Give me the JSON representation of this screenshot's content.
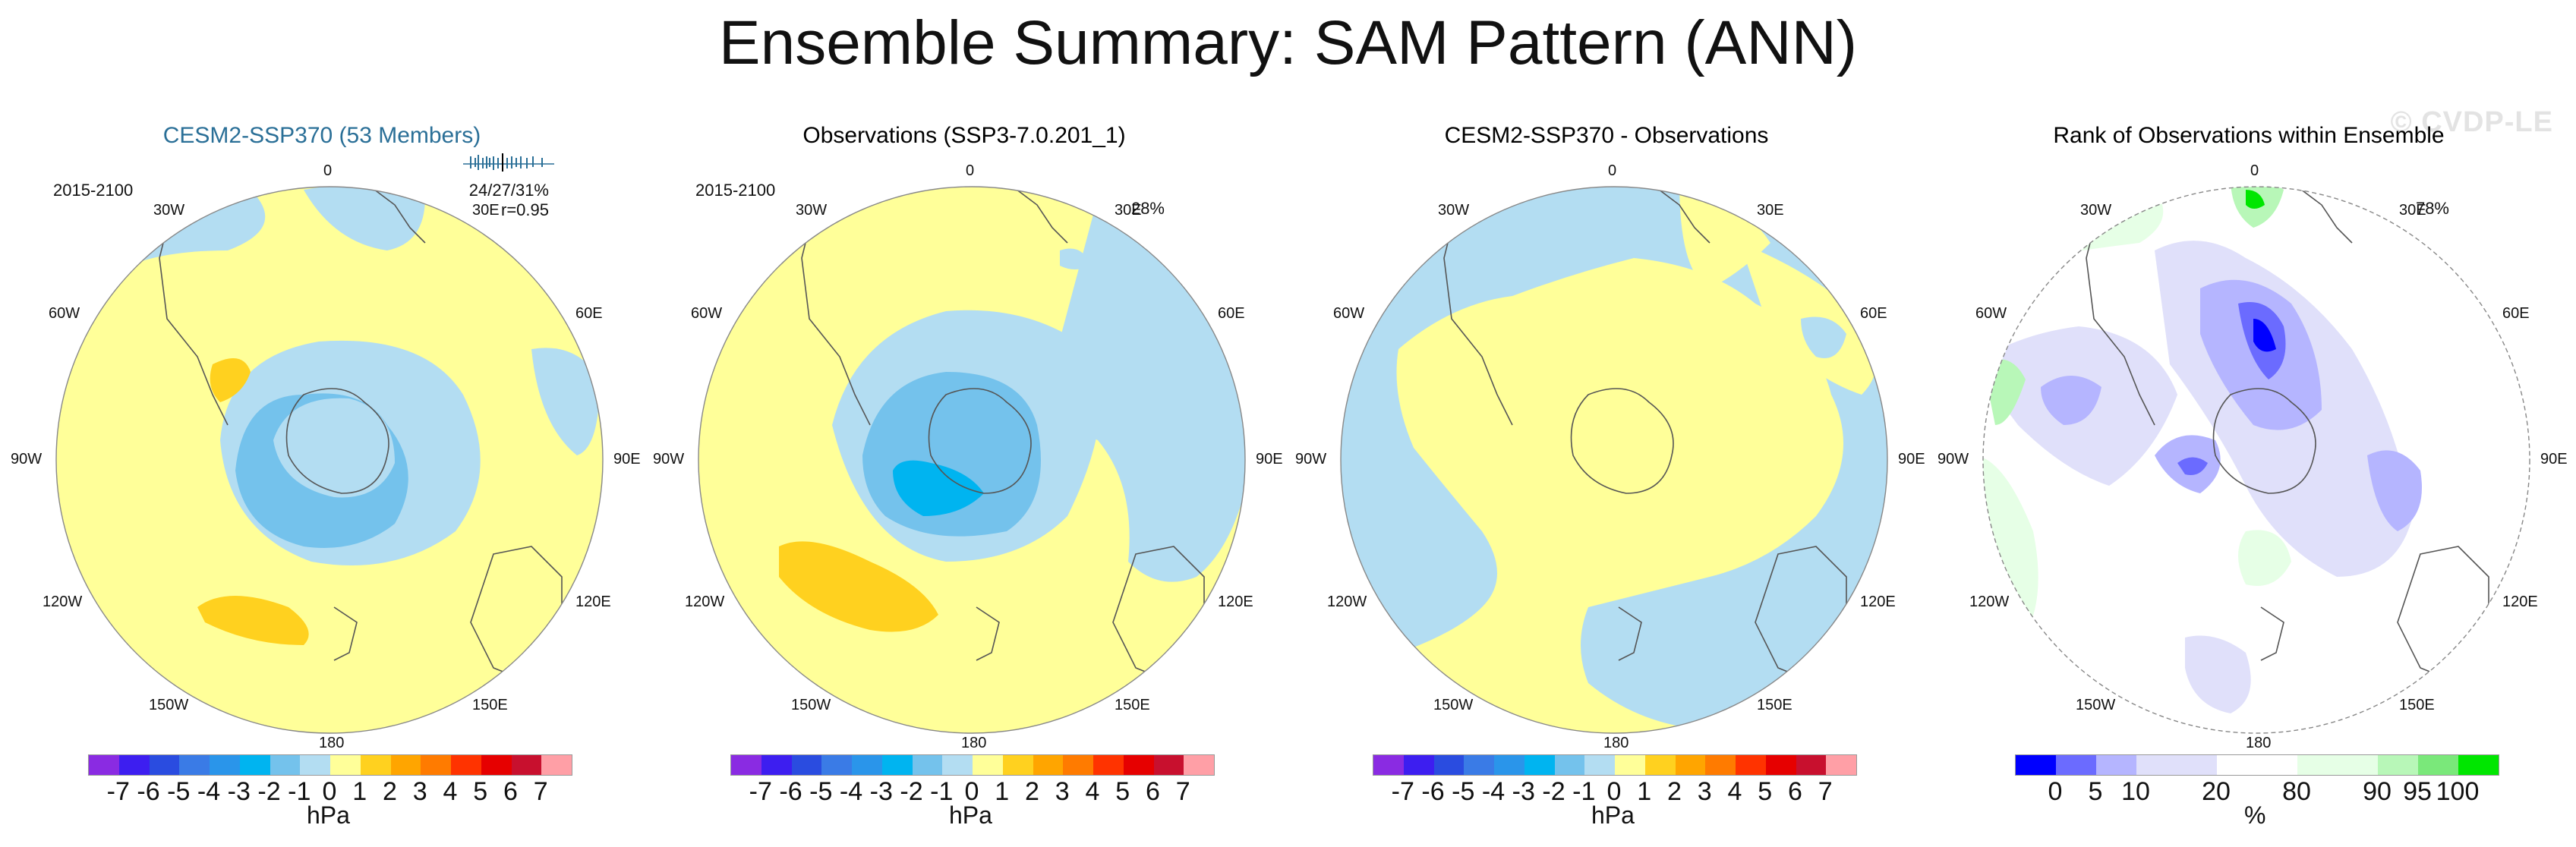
{
  "title": "Ensemble Summary: SAM Pattern (ANN)",
  "watermark": "© CVDP-LE",
  "colors": {
    "land_outline": "#555555",
    "circle_outline": "#888888",
    "member_title": "#2a6f97",
    "neg1": "#b3ddf2",
    "neg2": "#74c2ec",
    "neg3": "#00b4f0",
    "pos1": "#ffff99",
    "pos2": "#ffd11f"
  },
  "longitude_labels": [
    "0",
    "30E",
    "60E",
    "90E",
    "120E",
    "150E",
    "180",
    "150W",
    "120W",
    "90W",
    "60W",
    "30W"
  ],
  "panels": [
    {
      "title": "CESM2-SSP370 (53 Members)",
      "period": "2015-2100",
      "stats_line1": "24/27/31%",
      "stats_line2": "r=0.95",
      "pct": "",
      "colorbar": "diverging",
      "units": "hPa"
    },
    {
      "title": "Observations (SSP3-7.0.201_1)",
      "period": "2015-2100",
      "stats_line1": "",
      "stats_line2": "",
      "pct": "28%",
      "colorbar": "diverging",
      "units": "hPa"
    },
    {
      "title": "CESM2-SSP370 - Observations",
      "period": "",
      "stats_line1": "",
      "stats_line2": "",
      "pct": "",
      "colorbar": "diverging",
      "units": "hPa"
    },
    {
      "title": "Rank of Observations within Ensemble",
      "period": "",
      "stats_line1": "",
      "stats_line2": "",
      "pct": "78%",
      "colorbar": "rank",
      "units": "%"
    }
  ],
  "colorbars": {
    "diverging": {
      "colors": [
        "#8a2be2",
        "#3d1ef0",
        "#2a4ce0",
        "#3a7be6",
        "#2a95ea",
        "#00b4f0",
        "#74c2ec",
        "#b3ddf2",
        "#ffff99",
        "#ffd11f",
        "#ffa500",
        "#ff7b00",
        "#ff3300",
        "#e60000",
        "#c8102e",
        "#ff9fa6"
      ],
      "ticks": [
        "-7",
        "-6",
        "-5",
        "-4",
        "-3",
        "-2",
        "-1",
        "0",
        "1",
        "2",
        "3",
        "4",
        "5",
        "6",
        "7"
      ]
    },
    "rank": {
      "colors": [
        "#0000ff",
        "#6b6bff",
        "#b5b5ff",
        "#e0e0fa",
        "#e0e0fa",
        "#ffffff",
        "#ffffff",
        "#e6ffe6",
        "#e6ffe6",
        "#b8f7b8",
        "#7ae87a",
        "#00e600"
      ],
      "ticks": [
        "0",
        "5",
        "10",
        "20",
        "80",
        "90",
        "95",
        "100"
      ],
      "tick_positions": [
        1,
        2,
        3,
        5,
        7,
        9,
        10,
        11
      ]
    }
  }
}
